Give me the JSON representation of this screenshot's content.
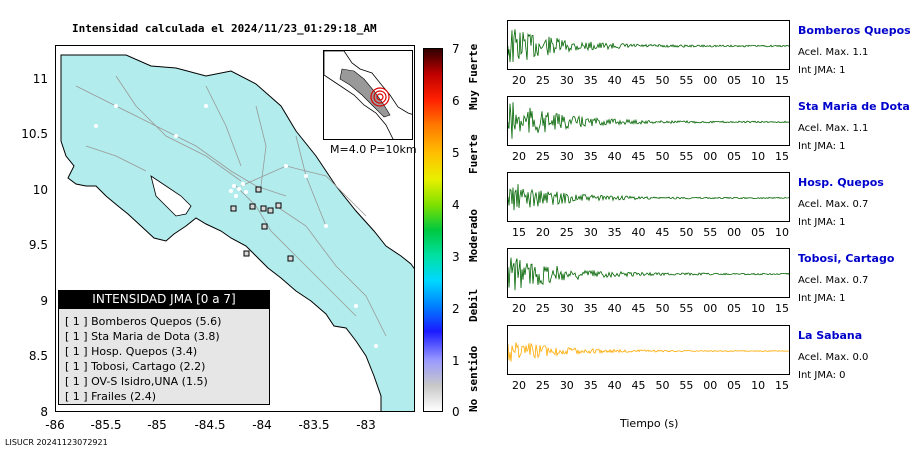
{
  "title": "Intensidad calculada el 2024/11/23_01:29:18_AM",
  "map": {
    "y_ticks": [
      "11",
      "10.5",
      "10",
      "9.5",
      "9",
      "8.5",
      "8"
    ],
    "x_ticks": [
      "-86",
      "-85.5",
      "-85",
      "-84.5",
      "-84",
      "-83.5",
      "-83"
    ],
    "inset_caption": "M=4.0 P=10km",
    "land_color": "#b3ecec",
    "epicenter_color": "#dd0000"
  },
  "legend": {
    "title": "INTENSIDAD JMA [0 a 7]",
    "items": [
      "[ 1 ]  Bomberos Quepos (5.6)",
      "[ 1 ]  Sta Maria de Dota (3.8)",
      "[ 1 ]  Hosp. Quepos (3.4)",
      "[ 1 ]  Tobosi, Cartago (2.2)",
      "[ 1 ]  OV-S Isidro,UNA (1.5)",
      "[ 1 ]  Frailes (2.4)"
    ]
  },
  "colorbar": {
    "numbers": [
      "7",
      "6",
      "5",
      "4",
      "3",
      "2",
      "1",
      "0"
    ],
    "words": [
      "Muy Fuerte",
      "Fuerte",
      "Moderado",
      "Debil",
      "No sentido"
    ]
  },
  "footer": "LISUCR 20241123072921",
  "traces": [
    {
      "station": "Bomberos Quepos",
      "acel": "Acel. Max. 1.1",
      "jma": "Int JMA: 1",
      "color": "#006400",
      "ticks": [
        "20",
        "25",
        "30",
        "35",
        "40",
        "45",
        "50",
        "55",
        "00",
        "05",
        "10",
        "15"
      ],
      "amp": 1.0,
      "onset": 0.02
    },
    {
      "station": "Sta Maria de Dota",
      "acel": "Acel. Max. 1.1",
      "jma": "Int JMA: 1",
      "color": "#006400",
      "ticks": [
        "20",
        "25",
        "30",
        "35",
        "40",
        "45",
        "50",
        "55",
        "00",
        "05",
        "10",
        "15"
      ],
      "amp": 1.0,
      "onset": 0.03
    },
    {
      "station": "Hosp. Quepos",
      "acel": "Acel. Max. 0.7",
      "jma": "Int JMA: 1",
      "color": "#006400",
      "ticks": [
        "15",
        "20",
        "25",
        "30",
        "35",
        "40",
        "45",
        "50",
        "55",
        "00",
        "05",
        "10"
      ],
      "amp": 0.75,
      "onset": 0.03
    },
    {
      "station": "Tobosi, Cartago",
      "acel": "Acel. Max. 0.7",
      "jma": "Int JMA: 1",
      "color": "#006400",
      "ticks": [
        "20",
        "25",
        "30",
        "35",
        "40",
        "45",
        "50",
        "55",
        "00",
        "05",
        "10",
        "15"
      ],
      "amp": 1.0,
      "onset": 0.02
    },
    {
      "station": "La Sabana",
      "acel": "Acel. Max. 0.0",
      "jma": "Int JMA: 0",
      "color": "#ffaa00",
      "ticks": [
        "20",
        "25",
        "30",
        "35",
        "40",
        "45",
        "50",
        "55",
        "00",
        "05",
        "10",
        "15"
      ],
      "amp": 0.55,
      "onset": 0.02
    }
  ],
  "x_axis_title": "Tiempo (s)"
}
